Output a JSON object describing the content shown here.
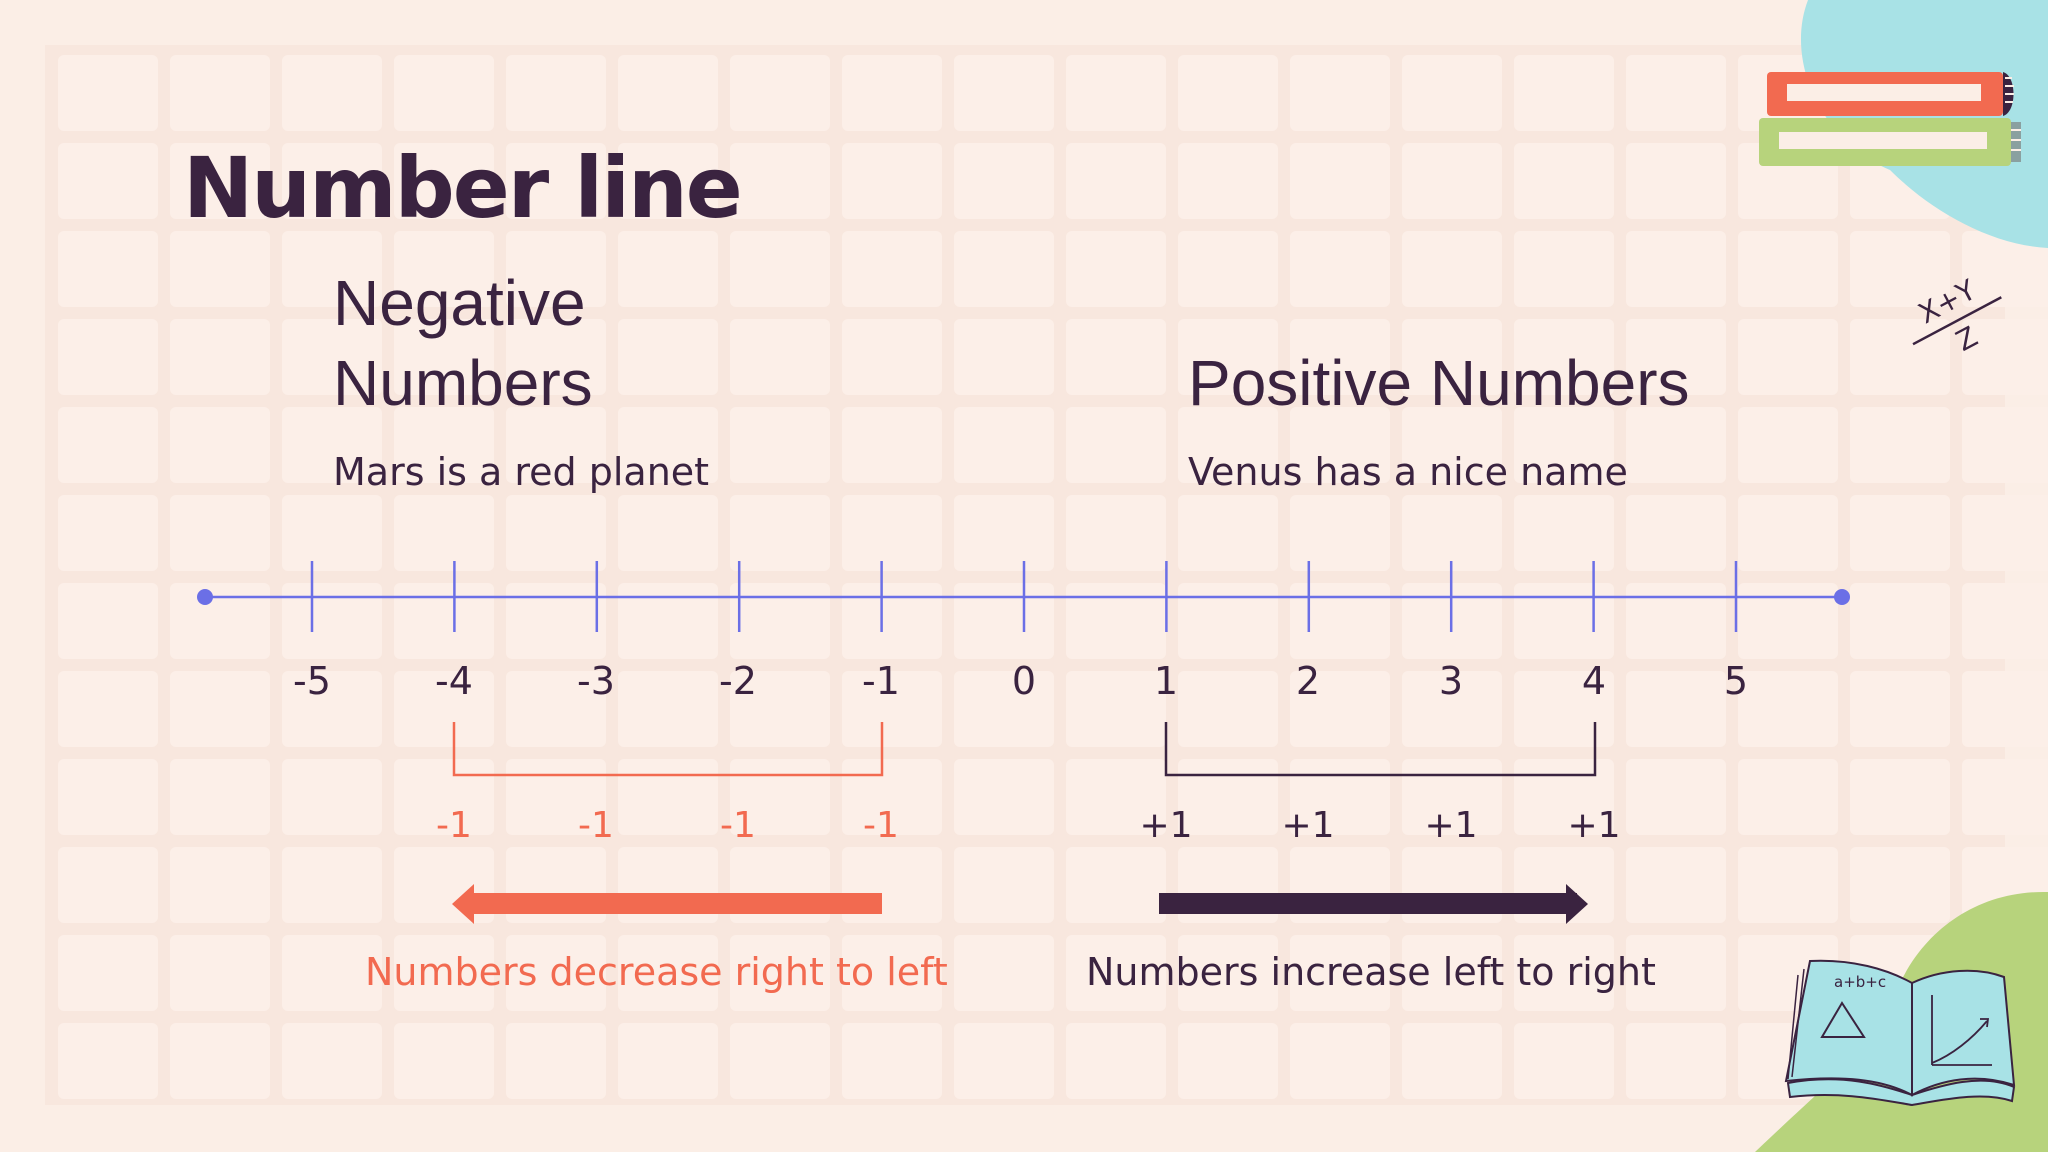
{
  "slide": {
    "title": "Number line",
    "negative": {
      "heading_line1": "Negative",
      "heading_line2": "Numbers",
      "description": "Mars is a red planet",
      "step_labels": [
        "-1",
        "-1",
        "-1",
        "-1"
      ],
      "caption": "Numbers decrease right to left"
    },
    "positive": {
      "heading": "Positive Numbers",
      "description": "Venus has a nice name",
      "step_labels": [
        "+1",
        "+1",
        "+1",
        "+1"
      ],
      "caption": "Numbers increase left to right"
    },
    "number_line": {
      "ticks": [
        "-5",
        "-4",
        "-3",
        "-2",
        "-1",
        "0",
        "1",
        "2",
        "3",
        "4",
        "5"
      ]
    },
    "decoration": {
      "formula_top": "X+Y",
      "formula_bottom": "Z",
      "book_formula": "a+b+c"
    },
    "colors": {
      "background": "#fbeee6",
      "text": "#3a2340",
      "accent_orange": "#f26a50",
      "line_blue": "#6b6fe6",
      "deco_blue": "#a8e2e6",
      "deco_green": "#b7d37c"
    },
    "icons": [
      "stacked-books-icon",
      "formula-icon",
      "open-book-icon"
    ]
  }
}
